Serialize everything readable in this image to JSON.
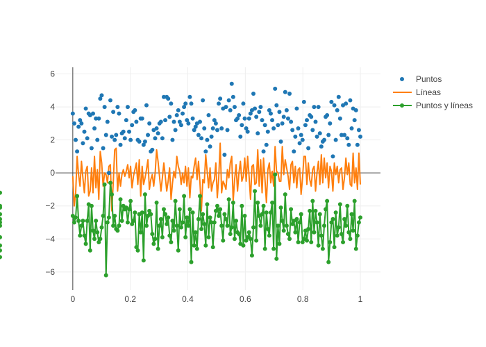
{
  "chart_data": {
    "type": "scatter",
    "title": "",
    "xlabel": "",
    "ylabel": "",
    "xlim": [
      -0.06,
      1.07
    ],
    "ylim": [
      -7.1,
      6.4
    ],
    "xticks": [
      0,
      0.2,
      0.4,
      0.6,
      0.8,
      1
    ],
    "xtick_labels": [
      "0",
      "0.2",
      "0.4",
      "0.6",
      "0.8",
      "1"
    ],
    "yticks": [
      -6,
      -4,
      -2,
      0,
      2,
      4,
      6
    ],
    "ytick_labels": [
      "−6",
      "−4",
      "−2",
      "0",
      "2",
      "4",
      "6"
    ],
    "grid": true,
    "zero_lines": true,
    "legend_position": "top-right",
    "x_points": 200,
    "x_range": [
      0,
      1
    ],
    "series": [
      {
        "name": "Puntos",
        "mode": "markers",
        "color": "#1f77b4",
        "values": [
          3.6,
          3.0,
          2.0,
          1.3,
          2.8,
          3.2,
          3.0,
          1.8,
          2.5,
          3.9,
          2.1,
          3.6,
          3.5,
          1.5,
          3.6,
          2.7,
          3.3,
          2.0,
          3.3,
          4.5,
          4.7,
          1.5,
          4.0,
          2.3,
          3.1,
          0.0,
          4.4,
          2.2,
          3.7,
          2.0,
          2.3,
          4.0,
          3.6,
          1.7,
          2.4,
          2.5,
          2.1,
          3.2,
          4.0,
          2.5,
          2.0,
          2.9,
          3.7,
          3.8,
          3.1,
          2.0,
          1.9,
          3.3,
          3.3,
          1.7,
          1.9,
          4.1,
          2.3,
          3.0,
          1.3,
          1.4,
          2.6,
          2.1,
          2.7,
          2.4,
          3.0,
          3.1,
          2.1,
          4.6,
          3.2,
          4.6,
          4.5,
          3.4,
          4.2,
          2.0,
          3.1,
          2.6,
          3.5,
          3.8,
          3.1,
          2.9,
          3.6,
          4.0,
          4.2,
          3.2,
          3.0,
          4.6,
          4.2,
          3.3,
          2.6,
          2.8,
          3.0,
          2.3,
          3.1,
          2.1,
          4.4,
          2.7,
          1.3,
          2.0,
          3.5,
          1.6,
          2.2,
          2.7,
          3.2,
          3.0,
          2.6,
          4.2,
          4.5,
          2.7,
          3.9,
          1.1,
          4.0,
          2.6,
          4.4,
          3.8,
          5.4,
          4.6,
          4.0,
          3.2,
          3.3,
          3.5,
          2.2,
          2.9,
          4.2,
          3.3,
          2.7,
          2.5,
          3.3,
          3.6,
          3.8,
          4.8,
          3.9,
          3.4,
          2.4,
          3.7,
          4.0,
          3.2,
          1.3,
          2.9,
          1.7,
          2.5,
          3.8,
          3.6,
          3.2,
          2.7,
          5.1,
          4.1,
          2.9,
          3.7,
          1.9,
          3.0,
          3.4,
          4.9,
          3.8,
          3.3,
          4.8,
          3.1,
          2.6,
          1.3,
          2.2,
          3.9,
          2.7,
          1.8,
          2.3,
          2.0,
          4.3,
          2.9,
          3.2,
          1.5,
          3.5,
          3.4,
          2.6,
          4.0,
          3.1,
          2.2,
          4.0,
          2.4,
          1.6,
          1.9,
          2.0,
          3.4,
          3.5,
          2.3,
          3.0,
          4.3,
          1.0,
          4.1,
          2.0,
          3.8,
          4.6,
          3.3,
          2.3,
          4.1,
          2.3,
          4.2,
          2.1,
          1.7,
          4.4,
          2.7,
          3.9,
          3.2,
          3.8,
          1.7,
          2.6,
          2.2
        ]
      },
      {
        "name": "Líneas",
        "mode": "lines",
        "color": "#ff7f0e",
        "values": [
          -0.2,
          -2.0,
          -1.2,
          1.0,
          -0.1,
          -0.8,
          0.7,
          -0.3,
          -1.2,
          0.1,
          0.4,
          -1.4,
          -1.1,
          0.3,
          -1.2,
          1.0,
          -0.9,
          0.2,
          -1.6,
          1.3,
          0.6,
          -0.8,
          0.0,
          -0.1,
          -0.6,
          0.4,
          0.5,
          -2.3,
          -0.6,
          1.4,
          1.5,
          -1.1,
          0.0,
          -0.8,
          -0.1,
          0.2,
          -0.2,
          0.1,
          0.5,
          -0.3,
          0.4,
          -0.9,
          -0.2,
          0.2,
          0.6,
          -0.7,
          0.8,
          -1.4,
          0.4,
          -0.7,
          -0.3,
          0.2,
          0.8,
          -1.0,
          -0.4,
          -0.1,
          -0.8,
          0.0,
          1.4,
          0.7,
          -0.2,
          -1.1,
          -0.3,
          0.6,
          -0.2,
          -1.1,
          -0.5,
          0.3,
          -1.6,
          -0.6,
          0.1,
          -0.3,
          1.0,
          0.4,
          0.1,
          -0.7,
          0.0,
          -0.6,
          0.4,
          -0.8,
          0.3,
          -1.5,
          -0.2,
          -0.3,
          0.4,
          0.9,
          -0.4,
          0.7,
          -0.6,
          -2.3,
          -0.4,
          -0.6,
          1.1,
          0.1,
          -0.9,
          0.3,
          -1.1,
          -0.6,
          -0.4,
          0.6,
          -1.5,
          -0.3,
          1.8,
          -1.2,
          -0.5,
          -0.7,
          -1.0,
          0.2,
          -0.3,
          0.6,
          1.0,
          -1.7,
          -0.4,
          0.5,
          -1.1,
          0.0,
          0.7,
          -0.5,
          -0.2,
          0.9,
          -0.5,
          1.0,
          -0.2,
          -1.6,
          0.4,
          0.5,
          -0.7,
          -0.6,
          1.4,
          -0.8,
          0.8,
          -1.2,
          0.9,
          -0.4,
          -1.8,
          0.2,
          0.6,
          -0.6,
          0.1,
          -0.8,
          1.6,
          0.1,
          0.0,
          -0.5,
          -0.5,
          1.6,
          -0.1,
          0.8,
          0.3,
          -0.2,
          -1.0,
          0.5,
          0.7,
          -0.6,
          0.4,
          -0.9,
          0.2,
          0.3,
          -1.3,
          -0.3,
          1.0,
          1.0,
          -0.7,
          0.6,
          -0.4,
          -0.8,
          0.2,
          0.4,
          -1.1,
          0.0,
          0.7,
          -0.7,
          1.1,
          -0.6,
          0.9,
          -0.3,
          0.6,
          -0.9,
          0.4,
          0.1,
          -1.1,
          0.6,
          -0.1,
          0.4,
          -0.6,
          0.2,
          0.3,
          -1.0,
          -0.3,
          0.9,
          -0.1,
          0.6,
          -0.7,
          -0.8,
          1.2,
          -0.6,
          0.3,
          -1.0,
          1.2,
          -0.7
        ]
      },
      {
        "name": "Puntos y líneas",
        "mode": "lines+markers",
        "color": "#2ca02c",
        "values": [
          -2.6,
          -3.0,
          -2.7,
          -1.4,
          -2.9,
          -3.8,
          -3.2,
          -2.9,
          -3.8,
          -4.3,
          -2.9,
          -1.9,
          -4.7,
          -2.0,
          -3.5,
          -4.0,
          -2.9,
          -3.6,
          -4.2,
          -4.0,
          -3.3,
          -2.6,
          -0.7,
          -6.2,
          -3.0,
          -2.7,
          -0.6,
          -1.3,
          -3.2,
          -2.6,
          -3.4,
          -3.5,
          -3.2,
          -1.6,
          -2.9,
          -2.0,
          -2.2,
          -2.1,
          -3.0,
          -2.2,
          -1.7,
          -3.1,
          -2.9,
          -2.4,
          -4.5,
          -4.7,
          -2.5,
          -3.6,
          -2.4,
          -5.3,
          -1.3,
          -3.2,
          -2.6,
          -2.3,
          -2.5,
          -3.7,
          -4.3,
          -4.0,
          -1.8,
          -4.6,
          -3.2,
          -2.8,
          -3.9,
          -2.2,
          -2.5,
          -3.1,
          -2.7,
          -3.8,
          -4.2,
          -2.9,
          -3.5,
          -1.7,
          -3.2,
          -4.7,
          -2.2,
          -3.3,
          -3.0,
          -1.4,
          -3.9,
          -2.7,
          -3.2,
          -2.2,
          -5.4,
          -2.4,
          -4.4,
          -3.6,
          -4.6,
          -2.8,
          -1.4,
          -3.4,
          -2.5,
          -3.1,
          -4.4,
          -1.9,
          -3.9,
          -2.7,
          -3.0,
          -4.5,
          -3.0,
          -2.3,
          -2.0,
          -2.6,
          -2.2,
          -3.2,
          -4.1,
          -2.5,
          -2.8,
          -3.2,
          -1.6,
          -3.7,
          -3.3,
          -1.8,
          -4.0,
          -2.9,
          -3.6,
          -3.7,
          -4.3,
          -2.0,
          -4.4,
          -2.6,
          -4.1,
          -3.9,
          -3.6,
          -4.0,
          -5.0,
          -3.3,
          -1.1,
          -4.1,
          -1.8,
          -2.6,
          -3.2,
          -2.5,
          -2.0,
          -4.6,
          -2.4,
          -3.4,
          -3.8,
          -2.4,
          -1.8,
          -4.6,
          -0.1,
          -5.2,
          -3.2,
          -4.3,
          -2.1,
          -2.9,
          -3.5,
          -1.3,
          -3.2,
          -3.7,
          -4.0,
          -2.2,
          -3.1,
          -2.9,
          -3.6,
          -2.8,
          -4.2,
          -3.0,
          -2.5,
          -4.2,
          -4.0,
          -3.5,
          -4.1,
          -3.4,
          -2.3,
          -4.2,
          -1.7,
          -3.6,
          -2.3,
          -3.0,
          -4.4,
          -2.5,
          -3.8,
          -4.6,
          -3.2,
          -2.2,
          -1.7,
          -5.4,
          -4.2,
          -3.0,
          -2.8,
          -4.5,
          -2.4,
          -3.8,
          -3.3,
          -1.9,
          -3.7,
          -4.2,
          -2.8,
          -3.2,
          -2.0,
          -3.6,
          -4.0,
          -2.5,
          -3.5,
          -1.7,
          -4.6,
          -3.8,
          -3.0,
          -2.7,
          -5.1,
          -2.1,
          -3.9,
          -4.4,
          -2.5,
          -4.7,
          -2.0,
          -3.0,
          -2.8,
          -3.2,
          -1.2
        ]
      }
    ]
  }
}
